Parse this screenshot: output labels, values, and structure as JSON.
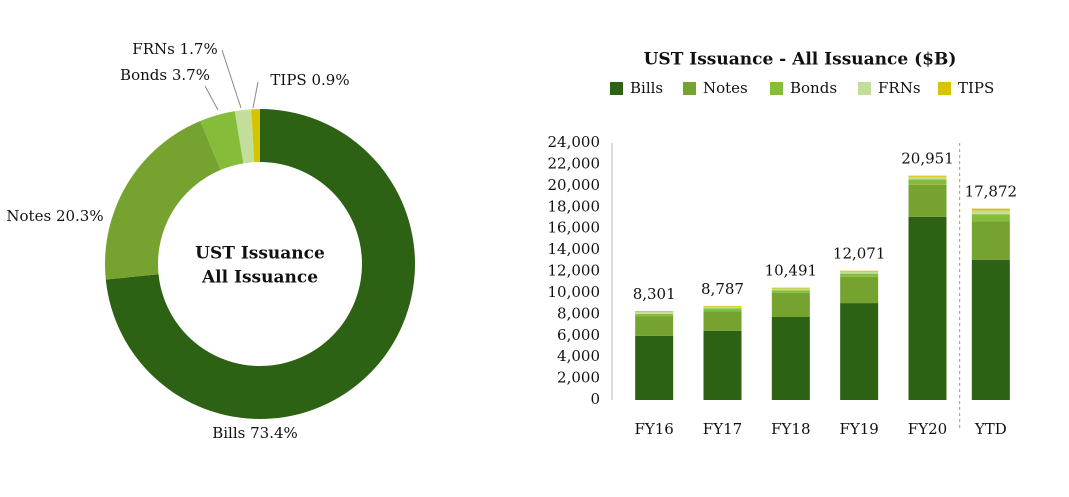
{
  "chart_data": [
    {
      "type": "donut",
      "center_text": [
        "UST Issuance",
        "All Issuance"
      ],
      "categories": [
        "Bills",
        "Notes",
        "Bonds",
        "FRNs",
        "TIPS"
      ],
      "values": [
        73.4,
        20.3,
        3.7,
        1.7,
        0.9
      ],
      "value_labels": [
        "73.4%",
        "20.3%",
        "3.7%",
        "1.7%",
        "0.9%"
      ],
      "colors": [
        "#2d6113",
        "#76a22f",
        "#85bd3a",
        "#c3de9a",
        "#d8c300"
      ]
    },
    {
      "type": "stacked_bar",
      "title": "UST Issuance - All Issuance ($B)",
      "categories": [
        "FY16",
        "FY17",
        "FY18",
        "FY19",
        "FY20",
        "YTD"
      ],
      "series": [
        {
          "name": "Bills",
          "color": "#2d6113",
          "values": [
            6000,
            6450,
            7750,
            9050,
            17100,
            13100
          ]
        },
        {
          "name": "Notes",
          "color": "#76a22f",
          "values": [
            1800,
            1850,
            2250,
            2450,
            3000,
            3600
          ]
        },
        {
          "name": "Bonds",
          "color": "#85bd3a",
          "values": [
            250,
            250,
            250,
            300,
            500,
            650
          ]
        },
        {
          "name": "FRNs",
          "color": "#c3de9a",
          "values": [
            160,
            160,
            160,
            170,
            240,
            350
          ]
        },
        {
          "name": "TIPS",
          "color": "#d8c300",
          "values": [
            91,
            77,
            81,
            101,
            111,
            172
          ]
        }
      ],
      "totals": [
        8301,
        8787,
        10491,
        12071,
        20951,
        17872
      ],
      "total_labels": [
        "8,301",
        "8,787",
        "10,491",
        "12,071",
        "20,951",
        "17,872"
      ],
      "ylim": [
        0,
        24000
      ],
      "yticks": [
        0,
        {
          "value": 2000,
          "label": "2,000"
        },
        {
          "value": 4000,
          "label": "4,000"
        },
        {
          "value": 6000,
          "label": "6,000"
        },
        {
          "value": 8000,
          "label": "8,000"
        },
        {
          "value": 10000,
          "label": "10,000"
        },
        {
          "value": 12000,
          "label": "12,000"
        },
        {
          "value": 14000,
          "label": "14,000"
        },
        {
          "value": 16000,
          "label": "16,000"
        },
        {
          "value": 18000,
          "label": "18,000"
        },
        {
          "value": 20000,
          "label": "20,000"
        },
        {
          "value": 22000,
          "label": "22,000"
        },
        {
          "value": 24000,
          "label": "24,000"
        }
      ]
    }
  ]
}
